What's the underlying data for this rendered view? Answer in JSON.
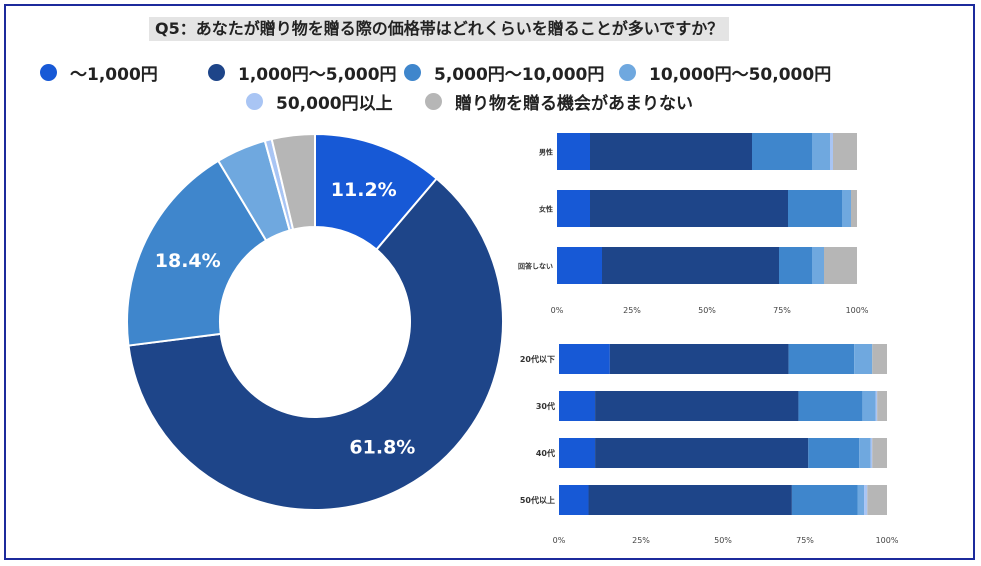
{
  "title": "Q5：あなたが贈り物を贈る際の価格帯はどれくらいを贈ることが多いですか？",
  "colors": {
    "c1": "#1759d6",
    "c2": "#1e4589",
    "c3": "#3f86cc",
    "c4": "#6fa8df",
    "c5": "#a9c5f4",
    "c6": "#b6b6b6"
  },
  "legend": [
    {
      "label": "～1,000円",
      "color_key": "c1"
    },
    {
      "label": "1,000円～5,000円",
      "color_key": "c2"
    },
    {
      "label": "5,000円～10,000円",
      "color_key": "c3"
    },
    {
      "label": "10,000円～50,000円",
      "color_key": "c4"
    },
    {
      "label": "50,000円以上",
      "color_key": "c5"
    },
    {
      "label": "贈り物を贈る機会があまりない",
      "color_key": "c6"
    }
  ],
  "chart_data": [
    {
      "type": "pie",
      "variant": "donut",
      "categories": [
        "～1,000円",
        "1,000円～5,000円",
        "5,000円～10,000円",
        "10,000円～50,000円",
        "50,000円以上",
        "贈り物を贈る機会があまりない"
      ],
      "values": [
        11.2,
        61.8,
        18.4,
        4.3,
        0.6,
        3.7
      ],
      "data_labels": [
        "11.2%",
        "61.8%",
        "18.4%",
        "",
        "",
        ""
      ]
    },
    {
      "type": "bar",
      "orientation": "horizontal",
      "stacked": "percent",
      "categories": [
        "男性",
        "女性",
        "回答しない"
      ],
      "series": [
        {
          "name": "～1,000円",
          "values": [
            11,
            11,
            15
          ]
        },
        {
          "name": "1,000円～5,000円",
          "values": [
            54,
            66,
            59
          ]
        },
        {
          "name": "5,000円～10,000円",
          "values": [
            20,
            18,
            11
          ]
        },
        {
          "name": "10,000円～50,000円",
          "values": [
            6,
            3,
            4
          ]
        },
        {
          "name": "50,000円以上",
          "values": [
            1,
            0,
            0
          ]
        },
        {
          "name": "贈り物を贈る機会があまりない",
          "values": [
            8,
            2,
            11
          ]
        }
      ],
      "xlim": [
        0,
        100
      ],
      "xticks": [
        "0%",
        "25%",
        "50%",
        "75%",
        "100%"
      ]
    },
    {
      "type": "bar",
      "orientation": "horizontal",
      "stacked": "percent",
      "categories": [
        "20代以下",
        "30代",
        "40代",
        "50代以上"
      ],
      "series": [
        {
          "name": "～1,000円",
          "values": [
            15.5,
            11,
            11,
            9
          ]
        },
        {
          "name": "1,000円～5,000円",
          "values": [
            54.5,
            62,
            65,
            62
          ]
        },
        {
          "name": "5,000円～10,000円",
          "values": [
            20,
            19.5,
            15.5,
            20
          ]
        },
        {
          "name": "10,000円～50,000円",
          "values": [
            5.5,
            4,
            3.5,
            2
          ]
        },
        {
          "name": "50,000円以上",
          "values": [
            0,
            0.5,
            0.5,
            1
          ]
        },
        {
          "name": "贈り物を贈る機会があまりない",
          "values": [
            4.5,
            3,
            4.5,
            6
          ]
        }
      ],
      "xlim": [
        0,
        100
      ],
      "xticks": [
        "0%",
        "25%",
        "50%",
        "75%",
        "100%"
      ]
    }
  ]
}
